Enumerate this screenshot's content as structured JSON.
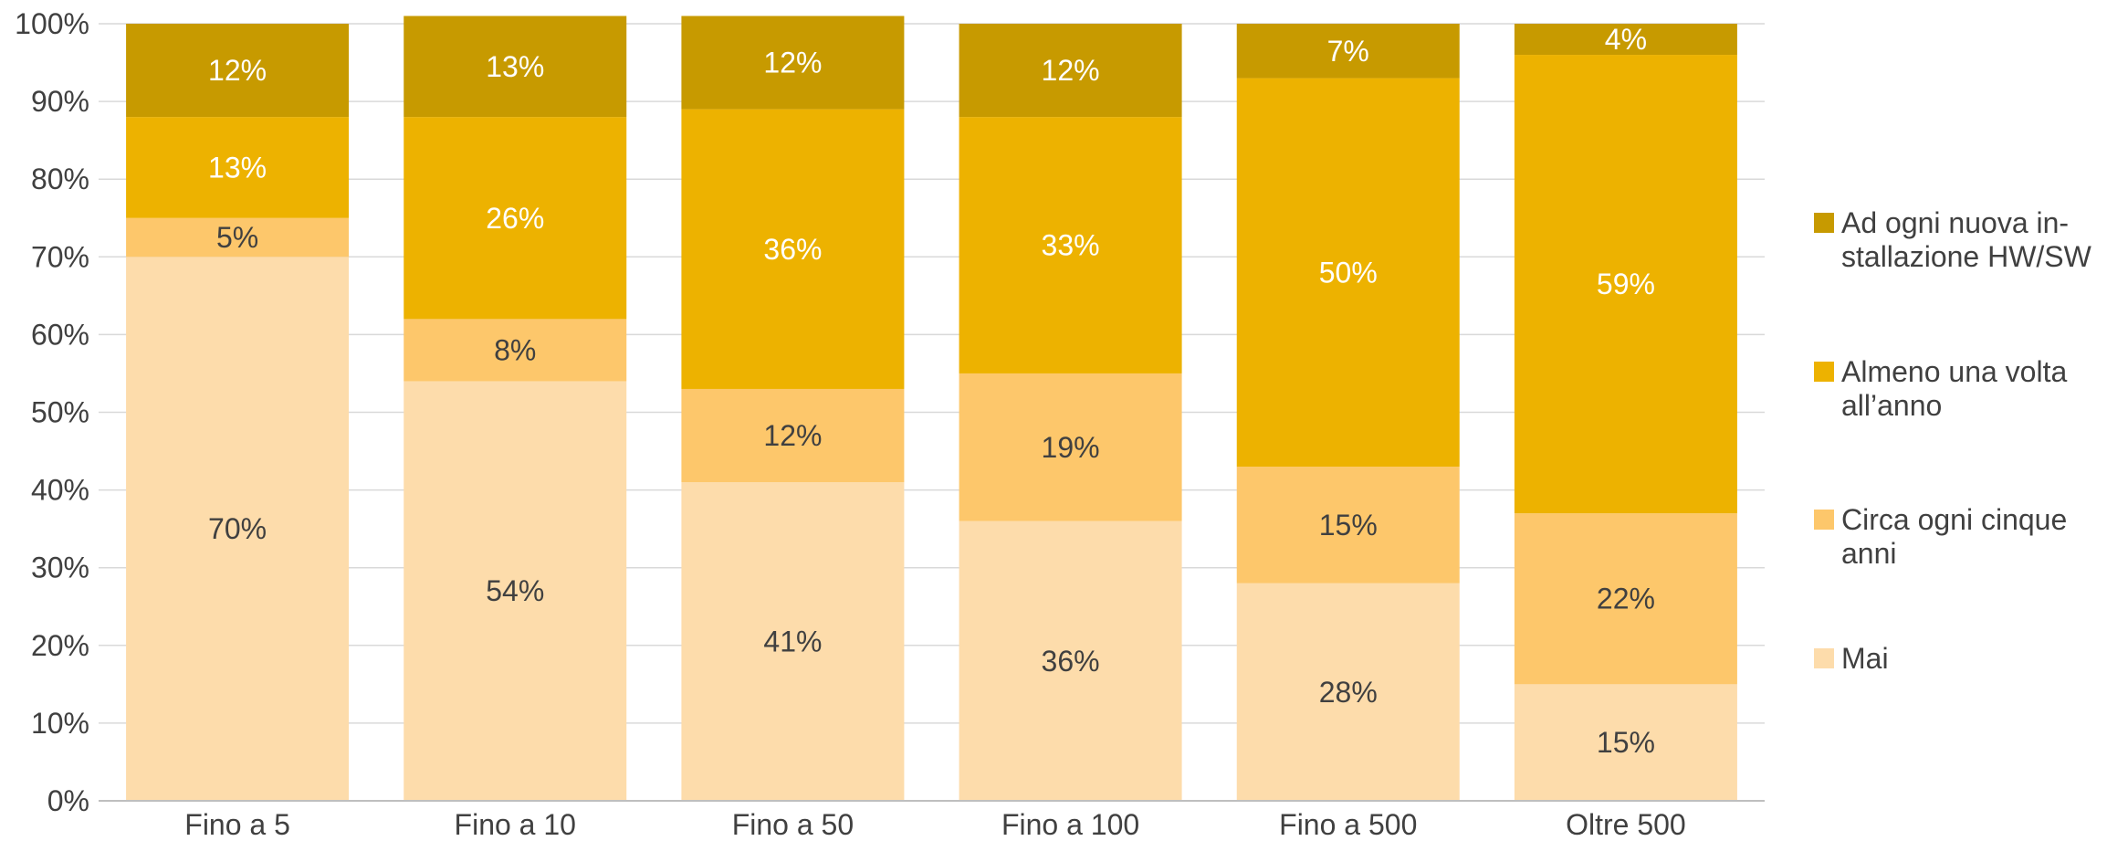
{
  "chart_data": {
    "type": "bar",
    "stacked": true,
    "percent_stacked": true,
    "title": "",
    "xlabel": "",
    "ylabel": "",
    "ylim": [
      0,
      100
    ],
    "y_ticks": [
      "0%",
      "10%",
      "20%",
      "30%",
      "40%",
      "50%",
      "60%",
      "70%",
      "80%",
      "90%",
      "100%"
    ],
    "grid": true,
    "legend_position": "right",
    "categories": [
      "Fino a 5",
      "Fino a 10",
      "Fino a 50",
      "Fino a 100",
      "Fino a 500",
      "Oltre 500"
    ],
    "series": [
      {
        "name": "Mai",
        "color": "#FDDCAB",
        "values": [
          70,
          54,
          41,
          36,
          28,
          15
        ],
        "labels": [
          "70%",
          "54%",
          "41%",
          "36%",
          "28%",
          "15%"
        ]
      },
      {
        "name": "Circa ogni cinque anni",
        "legend_lines": [
          "Circa ogni cinque",
          "anni"
        ],
        "color": "#FDC76B",
        "values": [
          5,
          8,
          12,
          19,
          15,
          22
        ],
        "labels": [
          "5%",
          "8%",
          "12%",
          "19%",
          "15%",
          "22%"
        ]
      },
      {
        "name": "Almeno una volta all’anno",
        "legend_lines": [
          "Almeno una volta",
          "all’anno"
        ],
        "color": "#EDB200",
        "values": [
          13,
          26,
          36,
          33,
          50,
          59
        ],
        "labels": [
          "13%",
          "26%",
          "36%",
          "33%",
          "50%",
          "59%"
        ]
      },
      {
        "name": "Ad ogni nuova installazione HW/SW",
        "legend_lines": [
          "Ad ogni nuova in-",
          "stallazione HW/SW"
        ],
        "color": "#C79A00",
        "values": [
          12,
          13,
          12,
          12,
          7,
          4
        ],
        "labels": [
          "12%",
          "13%",
          "12%",
          "12%",
          "7%",
          "4%"
        ]
      }
    ]
  }
}
